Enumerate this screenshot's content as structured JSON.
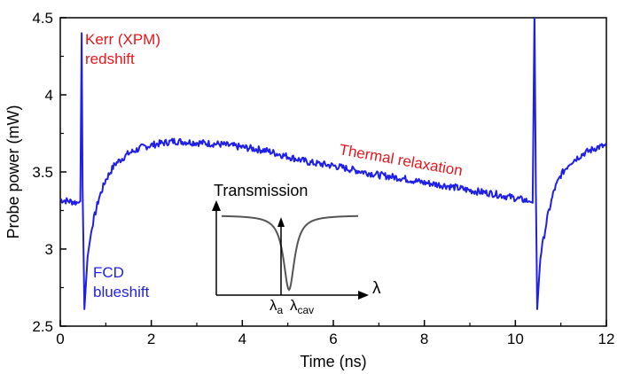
{
  "chart_data": {
    "type": "line",
    "xlabel": "Time (ns)",
    "ylabel": "Probe power (mW)",
    "xlim": [
      0,
      12
    ],
    "ylim": [
      2.5,
      4.5
    ],
    "x_ticks": [
      "0",
      "2",
      "4",
      "6",
      "8",
      "10",
      "12"
    ],
    "y_ticks": [
      "2.5",
      "3",
      "3.5",
      "4",
      "4.5"
    ],
    "grid": false,
    "series": [
      {
        "name": "Probe power",
        "color": "#1f1fe8",
        "points": [
          [
            0.0,
            3.32
          ],
          [
            0.2,
            3.31
          ],
          [
            0.4,
            3.3
          ],
          [
            0.44,
            3.31
          ],
          [
            0.47,
            4.4
          ],
          [
            0.49,
            3.4
          ],
          [
            0.53,
            2.61
          ],
          [
            0.6,
            2.95
          ],
          [
            0.7,
            3.15
          ],
          [
            0.85,
            3.33
          ],
          [
            1.0,
            3.45
          ],
          [
            1.2,
            3.55
          ],
          [
            1.5,
            3.62
          ],
          [
            1.8,
            3.66
          ],
          [
            2.1,
            3.68
          ],
          [
            2.5,
            3.7
          ],
          [
            3.0,
            3.69
          ],
          [
            3.5,
            3.68
          ],
          [
            4.0,
            3.66
          ],
          [
            4.5,
            3.64
          ],
          [
            5.0,
            3.6
          ],
          [
            5.5,
            3.56
          ],
          [
            6.0,
            3.54
          ],
          [
            6.5,
            3.51
          ],
          [
            7.0,
            3.48
          ],
          [
            7.5,
            3.46
          ],
          [
            8.0,
            3.43
          ],
          [
            8.5,
            3.41
          ],
          [
            9.0,
            3.38
          ],
          [
            9.5,
            3.36
          ],
          [
            10.0,
            3.33
          ],
          [
            10.3,
            3.31
          ],
          [
            10.38,
            3.3
          ],
          [
            10.42,
            4.55
          ],
          [
            10.45,
            3.4
          ],
          [
            10.48,
            2.61
          ],
          [
            10.55,
            2.95
          ],
          [
            10.7,
            3.2
          ],
          [
            10.85,
            3.38
          ],
          [
            11.0,
            3.48
          ],
          [
            11.2,
            3.56
          ],
          [
            11.5,
            3.62
          ],
          [
            11.8,
            3.66
          ],
          [
            12.0,
            3.67
          ]
        ]
      }
    ],
    "annotations": [
      {
        "text": "Kerr (XPM)",
        "color": "#e8151c"
      },
      {
        "text": "redshift",
        "color": "#e8151c"
      },
      {
        "text": "FCD",
        "color": "#1f1fe8"
      },
      {
        "text": "blueshift",
        "color": "#1f1fe8"
      },
      {
        "text": "Thermal relaxation",
        "color": "#e8151c"
      }
    ],
    "inset": {
      "title": "Transmission",
      "x_axis_symbol": "λ",
      "marker_a_base": "λ",
      "marker_a_sub": "a",
      "marker_cav_base": "λ",
      "marker_cav_sub": "cav",
      "curve_color": "#555555"
    }
  }
}
